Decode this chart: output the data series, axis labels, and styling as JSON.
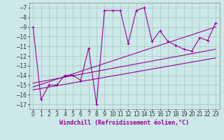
{
  "bg_color": "#cce8e8",
  "line_color": "#990099",
  "grid_color": "#aacccc",
  "xlabel": "Windchill (Refroidissement éolien,°C)",
  "xlabel_fontsize": 6.0,
  "tick_fontsize": 5.5,
  "xlim": [
    -0.5,
    23.5
  ],
  "ylim": [
    -17.5,
    -6.5
  ],
  "xticks": [
    0,
    1,
    2,
    3,
    4,
    5,
    6,
    7,
    8,
    9,
    10,
    11,
    12,
    13,
    14,
    15,
    16,
    17,
    18,
    19,
    20,
    21,
    22,
    23
  ],
  "yticks": [
    -17,
    -16,
    -15,
    -14,
    -13,
    -12,
    -11,
    -10,
    -9,
    -8,
    -7
  ],
  "main_x": [
    0,
    1,
    2,
    3,
    4,
    5,
    6,
    7,
    8,
    9,
    10,
    11,
    12,
    13,
    14,
    15,
    16,
    17,
    18,
    19,
    20,
    21,
    22,
    23
  ],
  "main_y": [
    -9.0,
    -16.5,
    -15.0,
    -15.0,
    -14.0,
    -14.0,
    -14.5,
    -11.2,
    -17.0,
    -7.3,
    -7.3,
    -7.3,
    -10.7,
    -7.3,
    -7.0,
    -10.5,
    -9.4,
    -10.5,
    -10.9,
    -11.3,
    -11.5,
    -10.1,
    -10.4,
    -8.6
  ],
  "line1_x": [
    0,
    23
  ],
  "line1_y": [
    -14.8,
    -11.3
  ],
  "line2_x": [
    0,
    23
  ],
  "line2_y": [
    -15.2,
    -9.0
  ],
  "line3_x": [
    0,
    23
  ],
  "line3_y": [
    -15.5,
    -12.2
  ]
}
